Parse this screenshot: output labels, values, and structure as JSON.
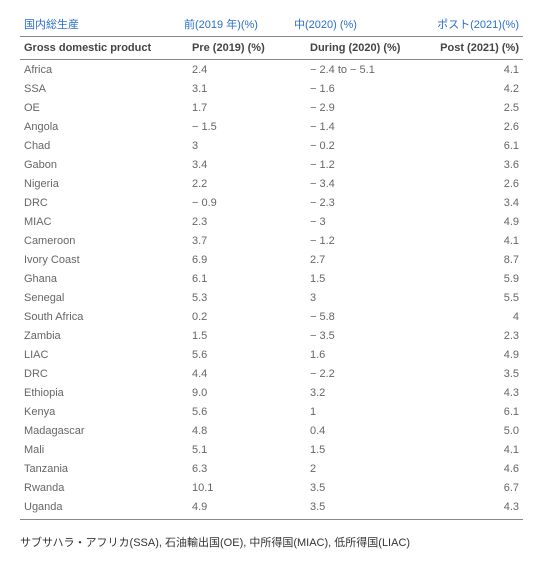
{
  "topLabels": {
    "name": "国内総生産",
    "pre": "前(2019 年)(%)",
    "during": "中(2020) (%)",
    "post": "ポスト(2021)(%)"
  },
  "headers": {
    "name": "Gross domestic product",
    "pre": "Pre (2019) (%)",
    "during": "During (2020) (%)",
    "post": "Post (2021) (%)"
  },
  "rows": [
    {
      "name": "Africa",
      "pre": "2.4",
      "during": "− 2.4 to − 5.1",
      "post": "4.1"
    },
    {
      "name": "SSA",
      "pre": "3.1",
      "during": "− 1.6",
      "post": "4.2"
    },
    {
      "name": "OE",
      "pre": "1.7",
      "during": "− 2.9",
      "post": "2.5"
    },
    {
      "name": "Angola",
      "pre": "− 1.5",
      "during": "− 1.4",
      "post": "2.6"
    },
    {
      "name": "Chad",
      "pre": "3",
      "during": "− 0.2",
      "post": "6.1"
    },
    {
      "name": "Gabon",
      "pre": "3.4",
      "during": "− 1.2",
      "post": "3.6"
    },
    {
      "name": "Nigeria",
      "pre": "2.2",
      "during": "− 3.4",
      "post": "2.6"
    },
    {
      "name": "DRC",
      "pre": "− 0.9",
      "during": "− 2.3",
      "post": "3.4"
    },
    {
      "name": "MIAC",
      "pre": "2.3",
      "during": "− 3",
      "post": "4.9"
    },
    {
      "name": "Cameroon",
      "pre": "3.7",
      "during": "− 1.2",
      "post": "4.1"
    },
    {
      "name": "Ivory Coast",
      "pre": "6.9",
      "during": "2.7",
      "post": "8.7"
    },
    {
      "name": "Ghana",
      "pre": "6.1",
      "during": "1.5",
      "post": "5.9"
    },
    {
      "name": "Senegal",
      "pre": "5.3",
      "during": "3",
      "post": "5.5"
    },
    {
      "name": "South Africa",
      "pre": "0.2",
      "during": "− 5.8",
      "post": "4"
    },
    {
      "name": "Zambia",
      "pre": "1.5",
      "during": "− 3.5",
      "post": "2.3"
    },
    {
      "name": "LIAC",
      "pre": "5.6",
      "during": "1.6",
      "post": "4.9"
    },
    {
      "name": "DRC",
      "pre": "4.4",
      "during": "− 2.2",
      "post": "3.5"
    },
    {
      "name": "Ethiopia",
      "pre": "9.0",
      "during": "3.2",
      "post": "4.3"
    },
    {
      "name": "Kenya",
      "pre": "5.6",
      "during": "1",
      "post": "6.1"
    },
    {
      "name": "Madagascar",
      "pre": "4.8",
      "during": "0.4",
      "post": "5.0"
    },
    {
      "name": "Mali",
      "pre": "5.1",
      "during": "1.5",
      "post": "4.1"
    },
    {
      "name": "Tanzania",
      "pre": "6.3",
      "during": "2",
      "post": "4.6"
    },
    {
      "name": "Rwanda",
      "pre": "10.1",
      "during": "3.5",
      "post": "6.7"
    },
    {
      "name": "Uganda",
      "pre": "4.9",
      "during": "3.5",
      "post": "4.3"
    }
  ],
  "footnote": "サブサハラ・アフリカ(SSA), 石油輸出国(OE), 中所得国(MIAC), 低所得国(LIAC)",
  "colors": {
    "link": "#2a6fc9",
    "text": "#555",
    "border": "#888",
    "background": "#ffffff"
  },
  "typography": {
    "base_fontsize": 11,
    "header_weight": "bold",
    "font_family": "Arial"
  }
}
